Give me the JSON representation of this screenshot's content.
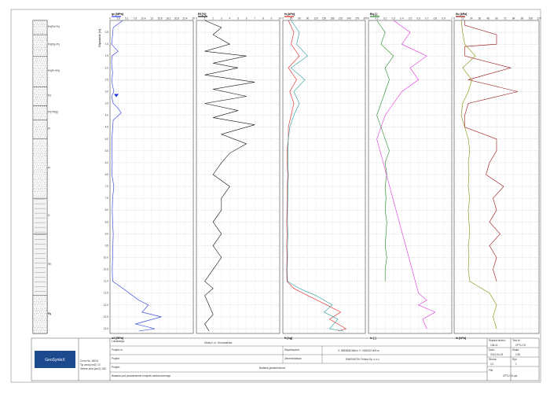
{
  "strata": [
    {
      "label": "Pd(Pd+Pr)",
      "fill": "dots"
    },
    {
      "label": "Pd(Pg+Pr)",
      "fill": "dots"
    },
    {
      "label": "Pd(Pr+Pd)",
      "fill": "dots"
    },
    {
      "label": "Pd",
      "fill": "dots"
    },
    {
      "label": "Pl(=Pl(z))",
      "fill": "dots"
    },
    {
      "label": "Pl",
      "fill": "dots"
    },
    {
      "label": "Pl",
      "fill": "dots"
    },
    {
      "label": "G",
      "fill": "clay"
    },
    {
      "label": "Gp",
      "fill": "clay"
    },
    {
      "label": "Pg",
      "fill": "clay"
    },
    {
      "label": "Ps",
      "fill": "dots"
    }
  ],
  "depth_axis_label": "Głębokość [m]",
  "chart_data": {
    "type": "line",
    "depth_range": [
      0,
      13.2
    ],
    "depth_ticks": [
      0.5,
      1.0,
      1.5,
      2.0,
      2.5,
      3.0,
      3.5,
      4.0,
      4.5,
      5.0,
      5.5,
      6.0,
      6.5,
      7.0,
      7.5,
      8.0,
      8.5,
      9.0,
      9.5,
      10.0,
      10.5,
      11.0,
      11.5,
      12.0,
      12.5,
      13.0
    ],
    "depth_ticks_labels": [
      "0.5",
      "1.0",
      "1.5",
      "2.0",
      "2.5",
      "3.0",
      "3.5",
      "4.0",
      "4.5",
      "5.0",
      "5.5",
      "6.0",
      "6.5",
      "7.0",
      "7.5",
      "8.0",
      "8.5",
      "9.0",
      "9.5",
      "10.0",
      "10.5",
      "11.0",
      "11.5",
      "12.0",
      "12.5",
      "13.0"
    ],
    "water_level": 3.2,
    "panels": [
      {
        "top_label": "qc [MPa]",
        "bottom_label": "u2 [MPa]",
        "color": "#2233dd",
        "xlim": [
          0,
          26
        ],
        "series": [
          {
            "depth": [
              0,
              0.3,
              0.6,
              1.0,
              1.3,
              1.5,
              1.8,
              2.2,
              2.6,
              3.0,
              3.2,
              3.5,
              3.7,
              3.9,
              4.2,
              4.6,
              5.0,
              5.5,
              6.0,
              6.5,
              7.0,
              7.5,
              8.0,
              8.5,
              9.0,
              9.5,
              10.0,
              10.5,
              11.0,
              11.2,
              11.5,
              11.8,
              12.0,
              12.3,
              12.5,
              12.8,
              13.0,
              13.1
            ],
            "x": [
              4,
              1,
              0.8,
              0.5,
              2.5,
              0.6,
              0.5,
              0.8,
              0.6,
              1.2,
              0.5,
              1,
              2.5,
              3.5,
              1,
              0.8,
              0.6,
              0.6,
              0.7,
              0.6,
              1.2,
              0.8,
              0.7,
              0.8,
              1.0,
              0.9,
              0.8,
              0.7,
              0.8,
              3,
              6,
              9,
              12,
              10,
              16,
              8,
              14,
              9
            ]
          }
        ]
      },
      {
        "top_label": "Rf [%]",
        "color": "#111111",
        "xlim": [
          0,
          10
        ],
        "series": [
          {
            "depth": [
              0,
              0.3,
              0.6,
              1.0,
              1.3,
              1.5,
              1.8,
              2.0,
              2.3,
              2.6,
              2.9,
              3.2,
              3.5,
              3.8,
              4.1,
              4.4,
              4.8,
              5.2,
              5.6,
              6.0,
              6.5,
              7.0,
              7.5,
              8.0,
              8.5,
              9.0,
              9.5,
              10.0,
              10.5,
              11.0,
              11.3,
              11.6,
              12.0,
              12.4,
              12.8,
              13.1
            ],
            "x": [
              1,
              3,
              2,
              4,
              1,
              6,
              2,
              5,
              1,
              7,
              2,
              6,
              1,
              5,
              2,
              7,
              3,
              6,
              4,
              3,
              2,
              4,
              3,
              3,
              2,
              3,
              2,
              3,
              2,
              1,
              2,
              1,
              1.5,
              2,
              1,
              1.5
            ]
          }
        ]
      },
      {
        "top_label": "fs [kPa]",
        "bottom_label": "ft [kg]",
        "color": "#dd2222",
        "xlim": [
          0,
          300
        ],
        "series": [
          {
            "depth": [
              0,
              0.5,
              1.0,
              1.5,
              2.0,
              2.5,
              3.0,
              3.5,
              4.0,
              4.5,
              5.0,
              5.5,
              6.0,
              6.5,
              7.0,
              7.5,
              8.0,
              8.5,
              9.0,
              9.5,
              10.0,
              10.5,
              11.0,
              11.3,
              11.6,
              12.0,
              12.3,
              12.6,
              13.0,
              13.1
            ],
            "x": [
              20,
              40,
              30,
              60,
              20,
              50,
              25,
              40,
              30,
              20,
              20,
              15,
              15,
              18,
              16,
              15,
              15,
              14,
              15,
              14,
              15,
              14,
              15,
              40,
              90,
              160,
              210,
              170,
              230,
              200
            ]
          },
          {
            "depth": [
              0,
              0.5,
              1.0,
              1.5,
              2.0,
              2.5,
              3.0,
              3.5,
              4.0,
              4.5,
              5.0,
              5.5,
              6.0,
              6.5,
              7.0,
              7.5,
              8.0,
              8.5,
              9.0,
              9.5,
              10.0,
              10.5,
              11.0,
              11.3,
              11.6,
              12.0,
              12.3,
              12.6,
              13.0,
              13.1
            ],
            "x": [
              30,
              60,
              50,
              90,
              30,
              80,
              40,
              60,
              40,
              25,
              20,
              18,
              18,
              20,
              19,
              18,
              17,
              17,
              18,
              17,
              17,
              16,
              17,
              60,
              120,
              180,
              150,
              200,
              170,
              220
            ],
            "color": "#229999"
          }
        ]
      },
      {
        "top_label": "Bq [-]",
        "bottom_label": "Ic [-]",
        "color": "#228822",
        "xlim": [
          0,
          1
        ],
        "series": [
          {
            "depth": [
              0,
              0.5,
              1.0,
              1.5,
              2.0,
              2.5,
              3.0,
              3.5,
              4.0,
              4.5,
              5.0,
              5.5,
              6.0,
              6.5,
              7.0,
              7.5,
              8.0,
              8.5,
              9.0,
              9.5,
              10.0,
              10.5,
              11.0
            ],
            "x": [
              0.1,
              0.2,
              0.15,
              0.3,
              0.2,
              0.25,
              0.2,
              0.15,
              0.1,
              0.15,
              0.2,
              0.25,
              0.2,
              0.22,
              0.2,
              0.21,
              0.2,
              0.22,
              0.21,
              0.2,
              0.22,
              0.2,
              0.2
            ]
          },
          {
            "depth": [
              0,
              0.5,
              1.0,
              1.5,
              2.0,
              2.5,
              3.0,
              3.5,
              4.0,
              4.5,
              5.0,
              11.5,
              11.8,
              12.0,
              12.3,
              12.6,
              13.0
            ],
            "x": [
              0.3,
              0.5,
              0.4,
              0.7,
              0.5,
              0.6,
              0.4,
              0.3,
              0.2,
              0.15,
              0.1,
              0.6,
              0.7,
              0.6,
              0.8,
              0.65,
              0.7
            ],
            "color": "#dd33dd"
          }
        ]
      },
      {
        "top_label": "Su [kPa]",
        "bottom_label": "Io [kPa]",
        "color": "#991111",
        "xlim": [
          0,
          120
        ],
        "series": [
          {
            "depth": [
              0,
              0.2,
              0.6,
              1.0,
              1.1,
              1.5,
              2.0,
              2.5,
              3.0,
              3.5,
              4.0,
              4.5,
              5.0,
              5.5,
              6.0,
              6.5,
              7.0,
              7.5,
              8.0,
              8.5,
              9.0,
              9.5,
              10.0,
              10.5,
              11.0
            ],
            "x": [
              15,
              15,
              60,
              60,
              15,
              15,
              80,
              20,
              90,
              20,
              15,
              15,
              60,
              60,
              50,
              45,
              70,
              55,
              60,
              50,
              65,
              50,
              60,
              55,
              60
            ]
          },
          {
            "depth": [
              0,
              0.5,
              1.0,
              1.5,
              2.0,
              2.5,
              3.0,
              3.5,
              4.0,
              4.5,
              5.0,
              5.5,
              6.0,
              6.5,
              7.0,
              7.5,
              8.0,
              8.5,
              9.0,
              9.5,
              10.0,
              10.5,
              11.0,
              11.5,
              12.0,
              12.5,
              13.0
            ],
            "x": [
              10,
              12,
              15,
              30,
              12,
              25,
              20,
              12,
              10,
              15,
              20,
              22,
              20,
              21,
              20,
              22,
              20,
              21,
              22,
              20,
              21,
              20,
              22,
              50,
              60,
              55,
              60
            ],
            "color": "#888800"
          }
        ]
      }
    ]
  },
  "footer": {
    "logo": "GeoSynteX",
    "left_info": [
      "Cone No: 18214",
      "Tip area [cm2]: 10",
      "Sleeve area [cm2]: 150"
    ],
    "r1": {
      "label": "Lokalizacja:",
      "value": "Olsztyn, ul. Grunwaldzka"
    },
    "r2": {
      "label": "Projekt nr:",
      "value": "",
      "coord_label": "Współrzędne:",
      "coord": "X: 5853828.588 m  Y: 7469022.609 m"
    },
    "r3": {
      "label": "Projekt:",
      "value": "",
      "client_label": "Zleceniodawca:",
      "client": "ENERGETIK Polska Sp. z o.o."
    },
    "r4": {
      "label": "Projekt:",
      "value": "Badania geotechniczne"
    },
    "r5": {
      "value": "Badania pod posadowienie budynku wielorodzinnego"
    },
    "right": {
      "rz_label": "Rzędna terenu:",
      "rz": "138.41",
      "test_label": "Test nr:",
      "test": "CPTU 02",
      "date_label": "Data:",
      "date": "2014-04-03",
      "scale_label": "Skala:",
      "scale": "1:50",
      "page_label": "Strona:",
      "page": "1/1",
      "fig_label": "Rys:",
      "fig": "1",
      "file_label": "Plik:",
      "file": "CPTU 02.cpt"
    }
  }
}
